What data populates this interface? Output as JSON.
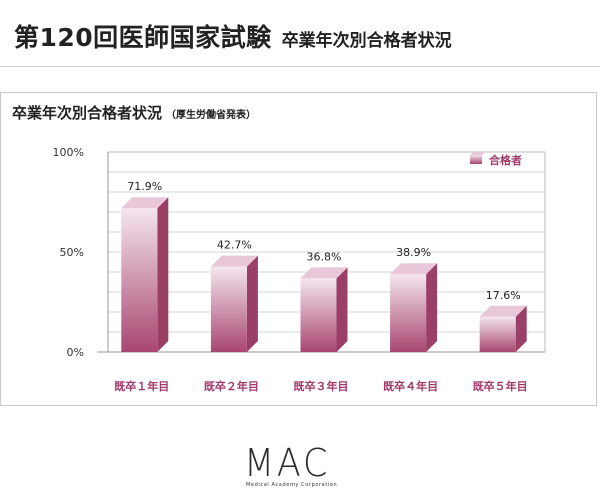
{
  "header": {
    "title": "第120回医師国家試験",
    "subtitle": "卒業年次別合格者状況"
  },
  "logo": {
    "name": "MAC",
    "tagline": "Medical Academy Corporation"
  },
  "colors": {
    "bar_front_top": "#f4e6ee",
    "bar_front_bottom": "#a8466f",
    "bar_top": "#e7c7d8",
    "bar_side": "#9a3f66",
    "label": "#a03a6a"
  },
  "chart_data": {
    "type": "bar",
    "title": "卒業年次別合格者状況",
    "subtitle": "（厚生労働省発表）",
    "categories": [
      "既卒１年目",
      "既卒２年目",
      "既卒３年目",
      "既卒４年目",
      "既卒５年目"
    ],
    "series": [
      {
        "name": "合格者",
        "values": [
          71.9,
          42.7,
          36.8,
          38.9,
          17.6
        ]
      }
    ],
    "value_labels": [
      "71.9%",
      "42.7%",
      "36.8%",
      "38.9%",
      "17.6%"
    ],
    "yticks": [
      {
        "value": 0,
        "label": "0%"
      },
      {
        "value": 50,
        "label": "50%"
      },
      {
        "value": 100,
        "label": "100%"
      }
    ],
    "ylim": [
      0,
      100
    ],
    "grid": true,
    "legend": "top-right"
  }
}
